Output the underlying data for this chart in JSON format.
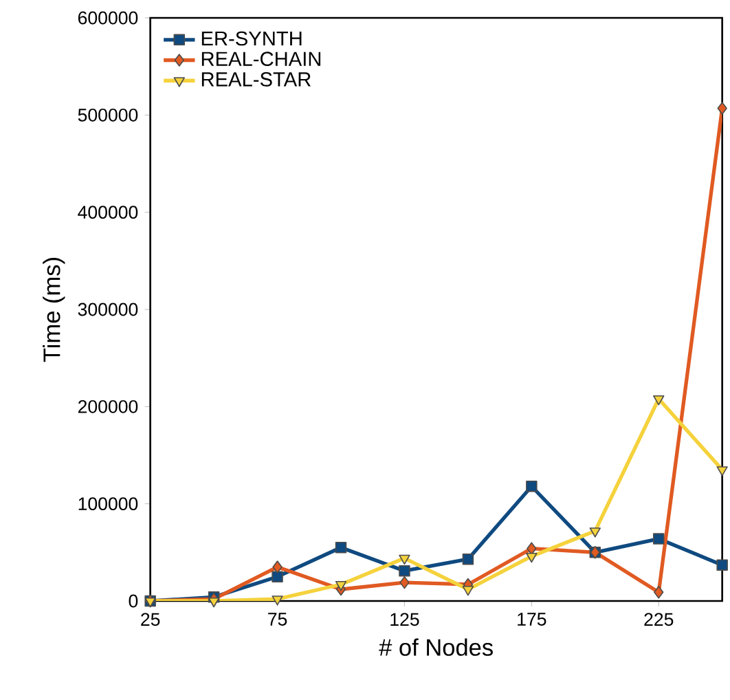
{
  "chart_data": {
    "type": "line",
    "xlabel": "# of Nodes",
    "ylabel": "Time (ms)",
    "x": [
      25,
      50,
      75,
      100,
      125,
      150,
      175,
      200,
      225,
      250
    ],
    "xlim": [
      25,
      250
    ],
    "xticks": [
      25,
      75,
      125,
      175,
      225
    ],
    "ylim": [
      0,
      600000
    ],
    "yticks": [
      0,
      100000,
      200000,
      300000,
      400000,
      500000,
      600000
    ],
    "grid": false,
    "legend": "top left",
    "series": [
      {
        "name": "ER-SYNTH",
        "color": "#0f4a80",
        "marker": "square",
        "values": [
          0,
          4000,
          25000,
          55000,
          31000,
          43000,
          118000,
          50000,
          64000,
          37000
        ]
      },
      {
        "name": "REAL-CHAIN",
        "color": "#e05a22",
        "marker": "diamond",
        "values": [
          0,
          2000,
          35000,
          12000,
          19000,
          17000,
          54000,
          50000,
          9000,
          507000
        ]
      },
      {
        "name": "REAL-STAR",
        "color": "#f5d23c",
        "marker": "triangle",
        "values": [
          0,
          0,
          2000,
          17000,
          44000,
          12000,
          46000,
          72000,
          208000,
          135000
        ]
      }
    ]
  }
}
